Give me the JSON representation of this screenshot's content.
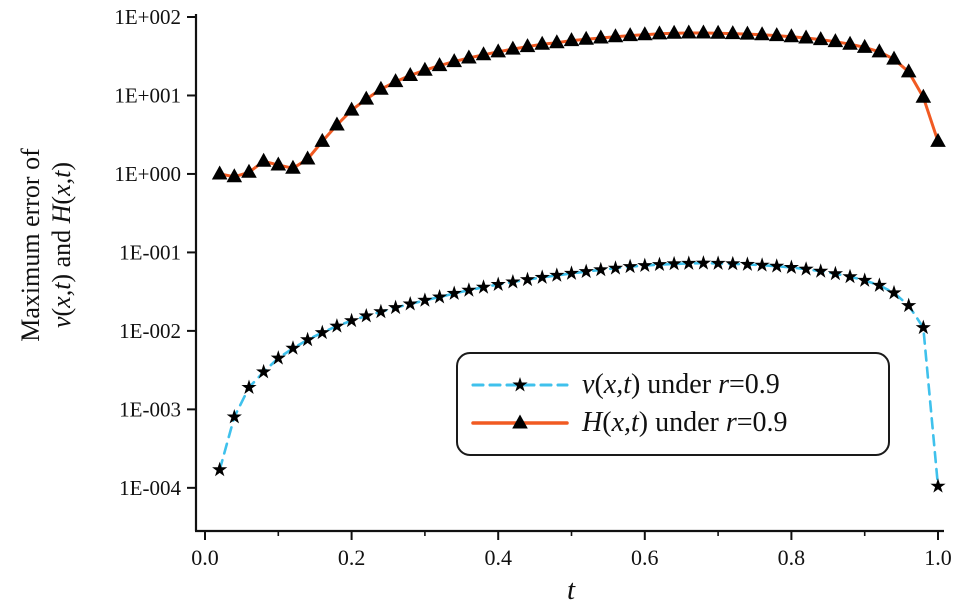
{
  "chart_data": {
    "type": "line",
    "title": "",
    "xlabel": "t",
    "ylabel": "Maximum error of v(x,t) and H(x,t)",
    "ylabel_lines": [
      [
        {
          "t": "Maximum error of",
          "i": false
        }
      ],
      [
        {
          "t": "v",
          "i": true
        },
        {
          "t": "(",
          "i": false
        },
        {
          "t": "x,t",
          "i": true
        },
        {
          "t": ") and ",
          "i": false
        },
        {
          "t": "H",
          "i": true
        },
        {
          "t": "(",
          "i": false
        },
        {
          "t": "x,t",
          "i": true
        },
        {
          "t": ")",
          "i": false
        }
      ]
    ],
    "x_axis": {
      "min": 0.0,
      "max": 1.0,
      "minor_step": 0.1,
      "major_ticks": [
        {
          "label": "0.0",
          "value": 0.0
        },
        {
          "label": "0.2",
          "value": 0.2
        },
        {
          "label": "0.4",
          "value": 0.4
        },
        {
          "label": "0.6",
          "value": 0.6
        },
        {
          "label": "0.8",
          "value": 0.8
        },
        {
          "label": "1.0",
          "value": 1.0
        }
      ]
    },
    "y_axis": {
      "scale": "log",
      "ticks": [
        {
          "label": "1E+002",
          "exp": 2
        },
        {
          "label": "1E+001",
          "exp": 1
        },
        {
          "label": "1E+000",
          "exp": 0
        },
        {
          "label": "1E-001",
          "exp": -1
        },
        {
          "label": "1E-002",
          "exp": -2
        },
        {
          "label": "1E-003",
          "exp": -3
        },
        {
          "label": "1E-004",
          "exp": -4
        }
      ]
    },
    "grid": false,
    "legend_position": "inside-bottom-center",
    "x": [
      0.02,
      0.04,
      0.06,
      0.08,
      0.1,
      0.12,
      0.14,
      0.16,
      0.18,
      0.2,
      0.22,
      0.24,
      0.26,
      0.28,
      0.3,
      0.32,
      0.34,
      0.36,
      0.38,
      0.4,
      0.42,
      0.44,
      0.46,
      0.48,
      0.5,
      0.52,
      0.54,
      0.56,
      0.58,
      0.6,
      0.62,
      0.64,
      0.66,
      0.68,
      0.7,
      0.72,
      0.74,
      0.76,
      0.78,
      0.8,
      0.82,
      0.84,
      0.86,
      0.88,
      0.9,
      0.92,
      0.94,
      0.96,
      0.98,
      1.0
    ],
    "series": [
      {
        "name": "v(x,t) under r=0.9",
        "legend_parts": [
          {
            "t": "v",
            "i": true
          },
          {
            "t": "(",
            "i": false
          },
          {
            "t": "x,t",
            "i": true
          },
          {
            "t": ") under ",
            "i": false
          },
          {
            "t": "r",
            "i": true
          },
          {
            "t": "=0.9",
            "i": false
          }
        ],
        "color": "#3fc1ec",
        "dash": "10 7",
        "line_width": 2.6,
        "marker": "star",
        "marker_color": "#000000",
        "values": [
          0.00017,
          0.0008,
          0.0019,
          0.003,
          0.0045,
          0.006,
          0.0077,
          0.0095,
          0.0115,
          0.0135,
          0.0155,
          0.0175,
          0.0198,
          0.022,
          0.0245,
          0.027,
          0.03,
          0.033,
          0.036,
          0.039,
          0.042,
          0.045,
          0.048,
          0.051,
          0.054,
          0.057,
          0.06,
          0.063,
          0.066,
          0.068,
          0.07,
          0.0715,
          0.0725,
          0.073,
          0.0725,
          0.0715,
          0.0703,
          0.0688,
          0.0668,
          0.0643,
          0.0612,
          0.0576,
          0.0535,
          0.049,
          0.044,
          0.038,
          0.0305,
          0.021,
          0.011,
          0.000105
        ]
      },
      {
        "name": "H(x,t) under r=0.9",
        "legend_parts": [
          {
            "t": "H",
            "i": true
          },
          {
            "t": "(",
            "i": false
          },
          {
            "t": "x,t",
            "i": true
          },
          {
            "t": ") under ",
            "i": false
          },
          {
            "t": "r",
            "i": true
          },
          {
            "t": "=0.9",
            "i": false
          }
        ],
        "color": "#f15a22",
        "dash": null,
        "line_width": 3,
        "marker": "triangle-up",
        "marker_color": "#000000",
        "values": [
          1.0,
          0.92,
          1.05,
          1.45,
          1.3,
          1.18,
          1.55,
          2.6,
          4.2,
          6.5,
          9.0,
          12,
          15,
          18,
          21,
          24,
          27,
          30,
          33,
          36,
          39,
          42,
          45,
          47,
          50,
          52,
          54,
          56,
          58,
          59.5,
          61,
          62,
          62.5,
          62.5,
          62,
          61.5,
          60.5,
          59.5,
          58,
          56,
          54,
          51.5,
          48.5,
          45,
          41,
          36,
          29,
          20,
          9.5,
          2.6
        ]
      }
    ]
  }
}
